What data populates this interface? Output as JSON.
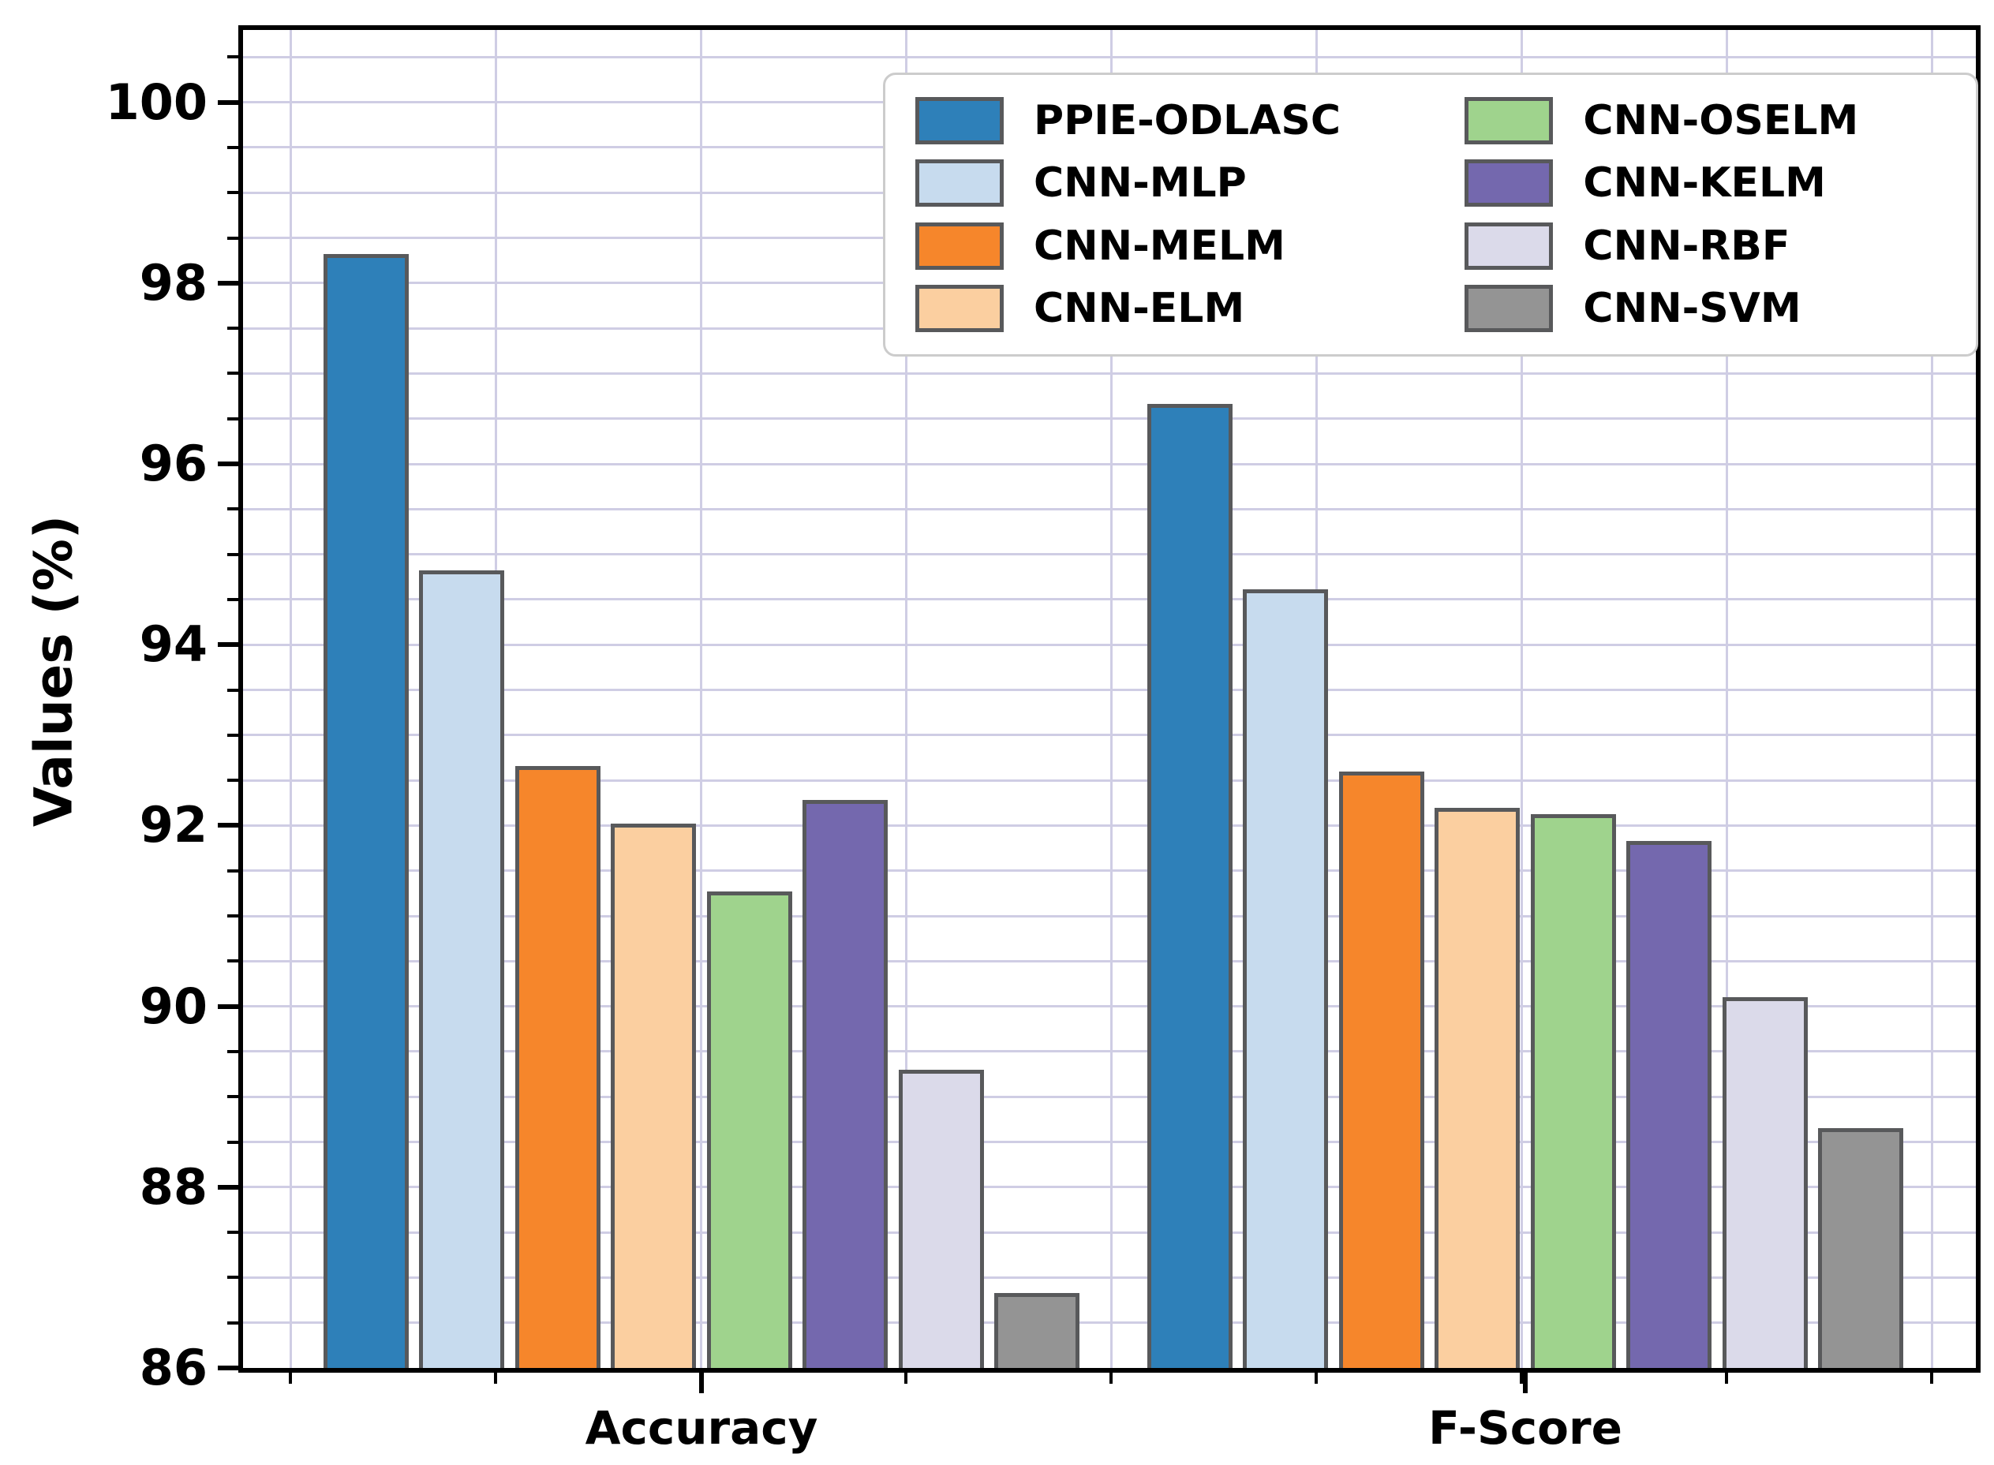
{
  "chart_data": {
    "type": "bar",
    "title": "",
    "xlabel": "",
    "ylabel": "Values (%)",
    "categories": [
      "Accuracy",
      "F-Score"
    ],
    "series": [
      {
        "name": "PPIE-ODLASC",
        "color": "#2e80b9",
        "values": [
          98.32,
          96.66
        ]
      },
      {
        "name": "CNN-MLP",
        "color": "#c7dbee",
        "values": [
          94.82,
          94.61
        ]
      },
      {
        "name": "CNN-MELM",
        "color": "#f6862b",
        "values": [
          92.66,
          92.6
        ]
      },
      {
        "name": "CNN-ELM",
        "color": "#fbcfa0",
        "values": [
          92.02,
          92.2
        ]
      },
      {
        "name": "CNN-OSELM",
        "color": "#9fd38d",
        "values": [
          91.27,
          92.13
        ]
      },
      {
        "name": "CNN-KELM",
        "color": "#7468ae",
        "values": [
          92.28,
          91.83
        ]
      },
      {
        "name": "CNN-RBF",
        "color": "#dbdaea",
        "values": [
          89.3,
          90.1
        ]
      },
      {
        "name": "CNN-SVM",
        "color": "#949494",
        "values": [
          86.83,
          88.65
        ]
      }
    ],
    "ylim": [
      86,
      100.8
    ],
    "y_major_ticks": [
      "86",
      "88",
      "90",
      "92",
      "94",
      "96",
      "98",
      "100"
    ],
    "y_minor_step": 0.5,
    "grid": true,
    "gridline_color": "#cfcde4",
    "bar_edge_color": "#58595b",
    "legend_position": "upper right",
    "legend_columns": 2,
    "legend_column_order": [
      [
        "PPIE-ODLASC",
        "CNN-MLP",
        "CNN-MELM",
        "CNN-ELM"
      ],
      [
        "CNN-OSELM",
        "CNN-KELM",
        "CNN-RBF",
        "CNN-SVM"
      ]
    ]
  }
}
